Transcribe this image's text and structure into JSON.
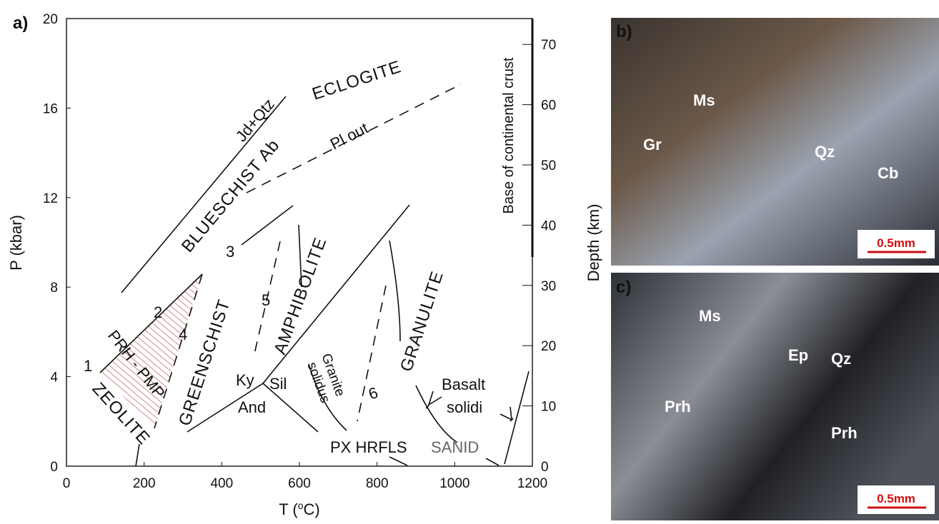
{
  "panel_a": {
    "panel_label": "a)",
    "x_axis": {
      "label_parts": [
        "T (",
        "o",
        "C)"
      ],
      "ticks": [
        0,
        200,
        400,
        600,
        800,
        1000,
        1200
      ]
    },
    "y_axis": {
      "label": "P (kbar)",
      "ticks": [
        0,
        4,
        8,
        12,
        16,
        20
      ]
    },
    "depth_axis": {
      "label": "Depth (km)",
      "ticks": [
        0,
        10,
        20,
        30,
        40,
        50,
        60,
        70
      ],
      "crust_label": "Base of continental crust"
    },
    "facies": {
      "eclogite": "ECLOGITE",
      "jd_qtz": "Jd+Qtz",
      "blueschist": "BLUESCHIST Ab",
      "pl_out": "Pl out",
      "prh_pmp": "PRH - PMP",
      "zeolite": "ZEOLITE",
      "greenschist": "GREENSCHIST",
      "amphibolite": "AMPHIBOLITE",
      "granulite": "GRANULITE",
      "ky": "Ky",
      "sil": "Sil",
      "and": "And",
      "granite": "Granite",
      "solidus": "solidus",
      "basalt": "Basalt",
      "solidi": "solidi",
      "px_hrfls": "PX HRFLS",
      "sanid": "SANID"
    },
    "numbers": [
      "1",
      "2",
      "3",
      "4",
      "5",
      "6"
    ]
  },
  "panel_b": {
    "panel_label": "b)",
    "minerals": [
      "Ms",
      "Gr",
      "Qz",
      "Cb"
    ],
    "scale": "0.5mm"
  },
  "panel_c": {
    "panel_label": "c)",
    "minerals": [
      "Ms",
      "Ep",
      "Qz",
      "Prh",
      "Prh"
    ],
    "scale": "0.5mm"
  }
}
